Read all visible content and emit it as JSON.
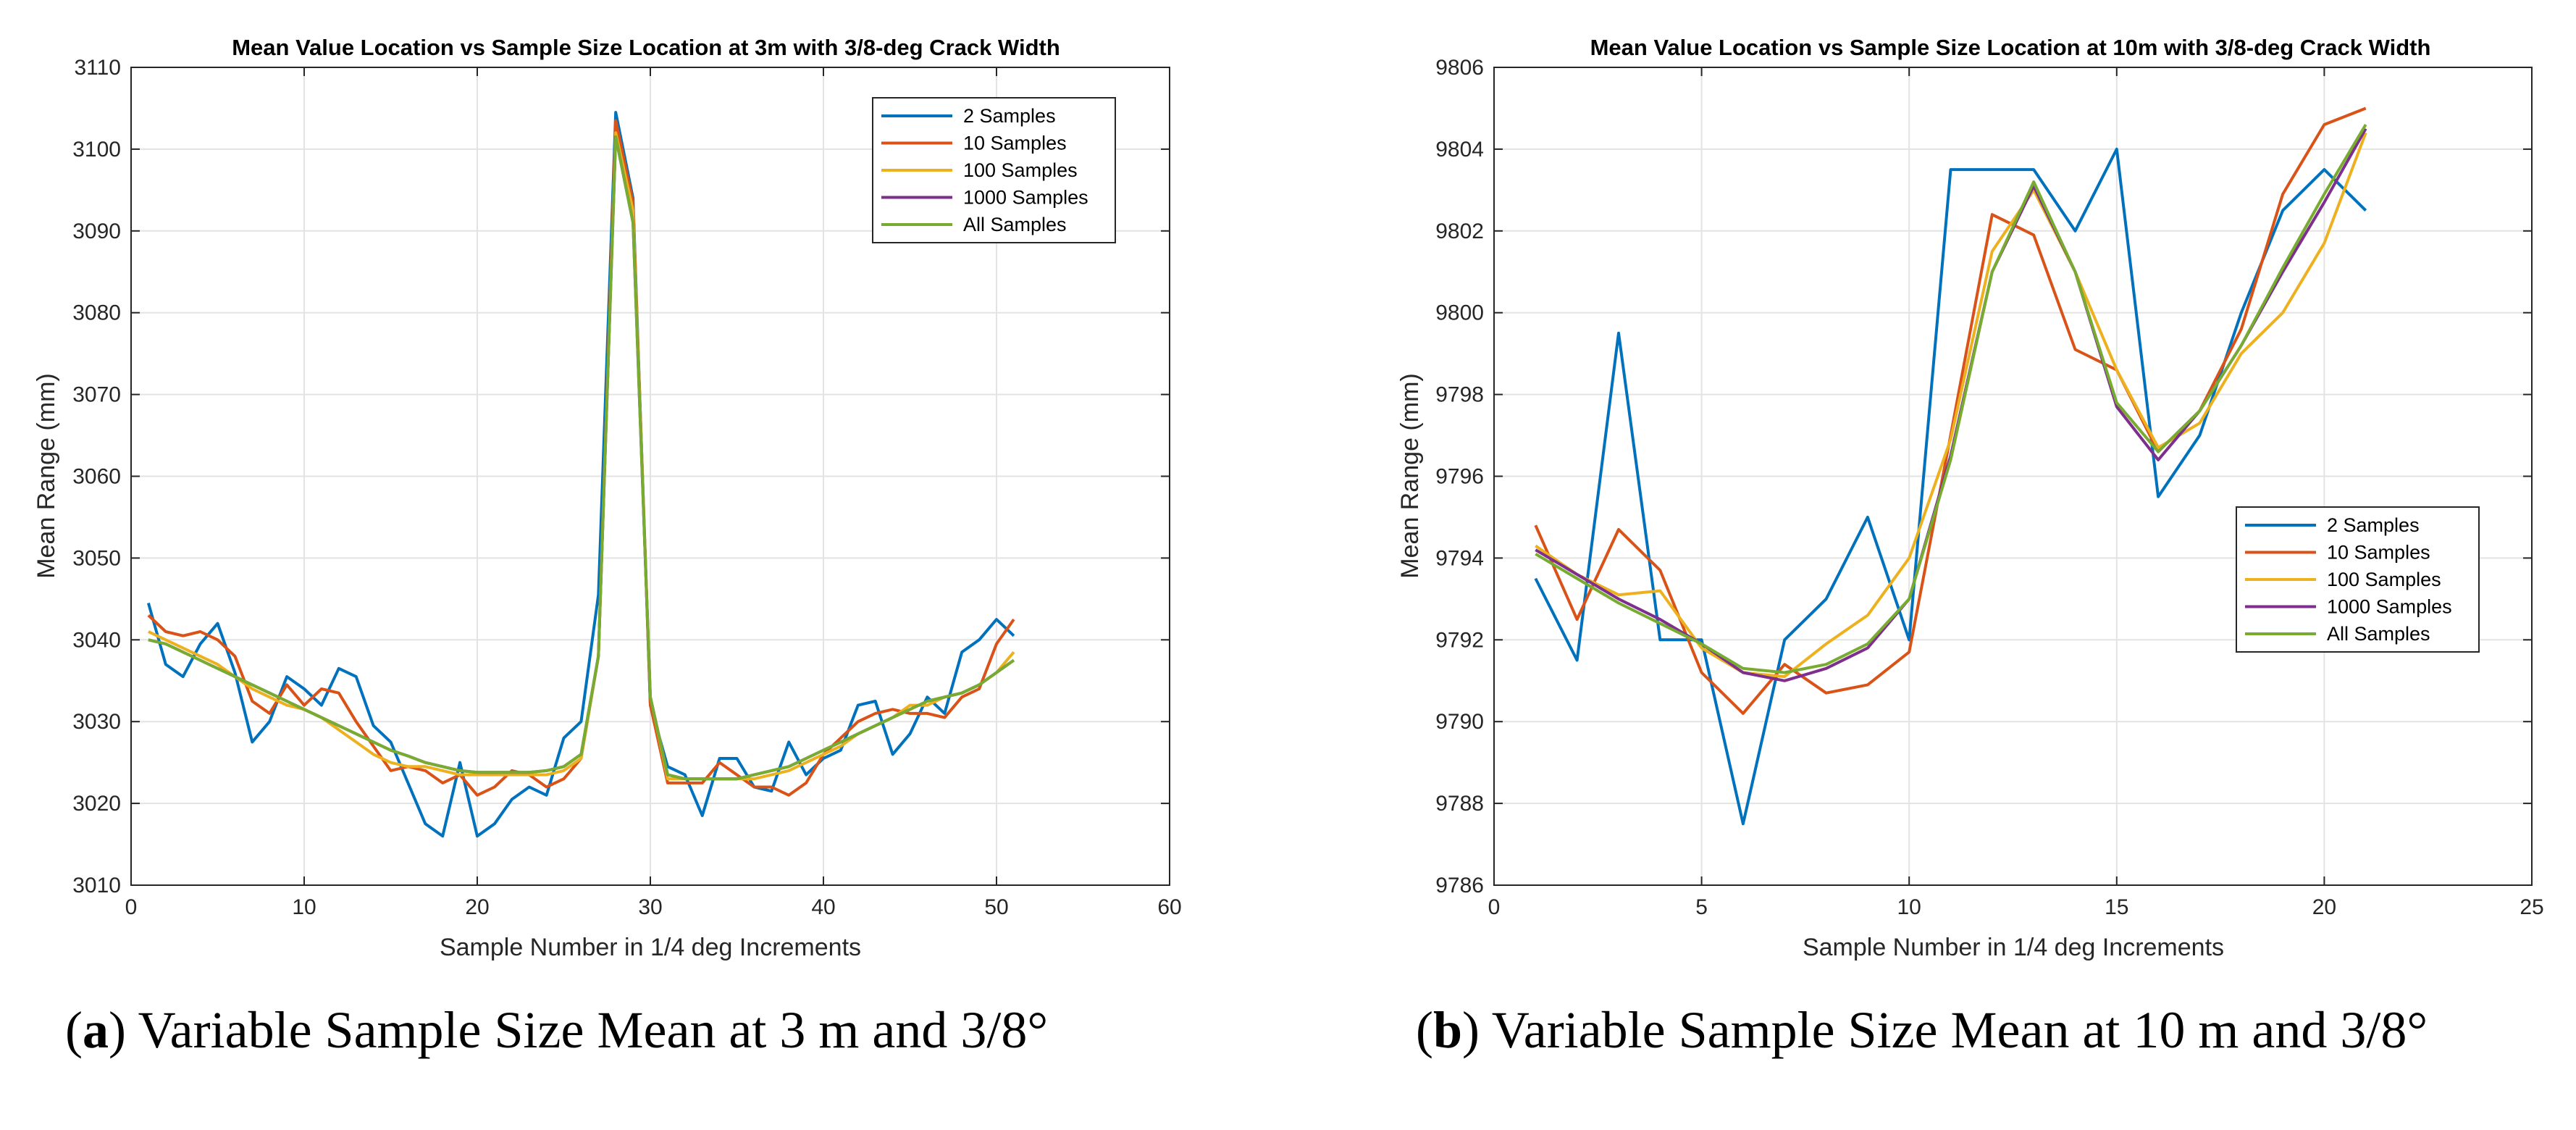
{
  "captions": [
    {
      "letter": "a",
      "text": " Variable Sample Size Mean at 3 m and 3/8°"
    },
    {
      "letter": "b",
      "text": " Variable Sample Size Mean at 10 m and 3/8°"
    }
  ],
  "colors": {
    "2 Samples": "#0072bd",
    "10 Samples": "#d95319",
    "100 Samples": "#edb120",
    "1000 Samples": "#7e2f8e",
    "All Samples": "#77ac30"
  },
  "chart_data": [
    {
      "type": "line",
      "title": "Mean Value Location vs Sample Size Location at 3m with 3/8-deg Crack Width",
      "xlabel": "Sample Number in 1/4 deg Increments",
      "ylabel": "Mean Range (mm)",
      "xlim": [
        0,
        60
      ],
      "ylim": [
        3010,
        3110
      ],
      "xticks": [
        0,
        10,
        20,
        30,
        40,
        50,
        60
      ],
      "yticks": [
        3010,
        3020,
        3030,
        3040,
        3050,
        3060,
        3070,
        3080,
        3090,
        3100,
        3110
      ],
      "grid": true,
      "legend_position": "top-right",
      "x": [
        1,
        2,
        3,
        4,
        5,
        6,
        7,
        8,
        9,
        10,
        11,
        12,
        13,
        14,
        15,
        16,
        17,
        18,
        19,
        20,
        21,
        22,
        23,
        24,
        25,
        26,
        27,
        28,
        29,
        30,
        31,
        32,
        33,
        34,
        35,
        36,
        37,
        38,
        39,
        40,
        41,
        42,
        43,
        44,
        45,
        46,
        47,
        48,
        49,
        50,
        51
      ],
      "series": [
        {
          "name": "2 Samples",
          "values": [
            3044.5,
            3037,
            3035.5,
            3039.5,
            3042,
            3036,
            3027.5,
            3030,
            3035.5,
            3034,
            3032,
            3036.5,
            3035.5,
            3029.5,
            3027.5,
            3022.5,
            3017.5,
            3016,
            3025,
            3016,
            3017.5,
            3020.5,
            3022,
            3021,
            3028,
            3030,
            3045.5,
            3104.5,
            3094,
            3032,
            3024.5,
            3023.5,
            3018.5,
            3025.5,
            3025.5,
            3022,
            3021.5,
            3027.5,
            3023.5,
            3025.5,
            3026.5,
            3032,
            3032.5,
            3026,
            3028.5,
            3033,
            3031,
            3038.5,
            3040,
            3042.5,
            3040.5
          ]
        },
        {
          "name": "10 Samples",
          "values": [
            3043,
            3041,
            3040.5,
            3041,
            3040,
            3038,
            3032.5,
            3031,
            3034.5,
            3032,
            3034,
            3033.5,
            3030,
            3027,
            3024,
            3024.5,
            3024,
            3022.5,
            3023.5,
            3021,
            3022,
            3024,
            3023.5,
            3022,
            3023,
            3025.5,
            3038,
            3103.5,
            3093.5,
            3032,
            3022.5,
            3022.5,
            3022.5,
            3025,
            3023.5,
            3022,
            3022,
            3021,
            3022.5,
            3026,
            3028,
            3030,
            3031,
            3031.5,
            3031,
            3031,
            3030.5,
            3033,
            3034,
            3039.5,
            3042.5
          ]
        },
        {
          "name": "100 Samples",
          "values": [
            3041,
            3040,
            3039,
            3038,
            3037,
            3035.5,
            3034,
            3033,
            3032,
            3031.5,
            3030.5,
            3029,
            3027.5,
            3026,
            3025,
            3024.5,
            3024.5,
            3024,
            3023.5,
            3023.5,
            3023.5,
            3023.5,
            3023.5,
            3023.5,
            3024,
            3025.5,
            3038,
            3102,
            3092.5,
            3033,
            3023,
            3023,
            3023,
            3023,
            3023,
            3023,
            3023.5,
            3024,
            3025,
            3026,
            3027,
            3028.5,
            3029.5,
            3030.5,
            3032,
            3032,
            3033,
            3033.5,
            3034.5,
            3036,
            3038.5
          ]
        },
        {
          "name": "1000 Samples",
          "values": [
            3040,
            3039.5,
            3038.5,
            3037.5,
            3036.5,
            3035.5,
            3034.5,
            3033.5,
            3032.5,
            3031.5,
            3030.5,
            3029.5,
            3028.5,
            3027.5,
            3026.5,
            3025.8,
            3025,
            3024.5,
            3024,
            3023.8,
            3023.8,
            3023.8,
            3023.8,
            3024,
            3024.5,
            3026,
            3038,
            3101.5,
            3091,
            3033,
            3023.5,
            3023,
            3023,
            3023,
            3023,
            3023.5,
            3024,
            3024.5,
            3025.5,
            3026.5,
            3027.5,
            3028.5,
            3029.5,
            3030.5,
            3031.5,
            3032.5,
            3033,
            3033.5,
            3034.5,
            3036,
            3037.5
          ]
        },
        {
          "name": "All Samples",
          "values": [
            3040,
            3039.5,
            3038.5,
            3037.5,
            3036.5,
            3035.5,
            3034.5,
            3033.5,
            3032.5,
            3031.5,
            3030.5,
            3029.5,
            3028.5,
            3027.5,
            3026.5,
            3025.8,
            3025,
            3024.5,
            3024,
            3023.8,
            3023.8,
            3023.8,
            3023.8,
            3024,
            3024.5,
            3026,
            3038,
            3101.5,
            3091,
            3033,
            3023.5,
            3023,
            3023,
            3023,
            3023,
            3023.5,
            3024,
            3024.5,
            3025.5,
            3026.5,
            3027.5,
            3028.5,
            3029.5,
            3030.5,
            3031.5,
            3032.5,
            3033,
            3033.5,
            3034.5,
            3036,
            3037.5
          ]
        }
      ]
    },
    {
      "type": "line",
      "title": "Mean Value Location vs Sample Size Location at 10m with 3/8-deg Crack Width",
      "xlabel": "Sample Number in 1/4 deg Increments",
      "ylabel": "Mean Range (mm)",
      "xlim": [
        0,
        25
      ],
      "ylim": [
        9786,
        9806
      ],
      "xticks": [
        0,
        5,
        10,
        15,
        20,
        25
      ],
      "yticks": [
        9786,
        9788,
        9790,
        9792,
        9794,
        9796,
        9798,
        9800,
        9802,
        9804,
        9806
      ],
      "grid": true,
      "legend_position": "middle-right",
      "x": [
        1,
        2,
        3,
        4,
        5,
        6,
        7,
        8,
        9,
        10,
        11,
        12,
        13,
        14,
        15,
        16,
        17,
        18,
        19,
        20,
        21
      ],
      "series": [
        {
          "name": "2 Samples",
          "values": [
            9793.5,
            9791.5,
            9799.5,
            9792,
            9792,
            9787.5,
            9792,
            9793,
            9795,
            9792,
            9803.5,
            9803.5,
            9803.5,
            9802,
            9804,
            9795.5,
            9797,
            9800,
            9802.5,
            9803.5,
            9802.5
          ]
        },
        {
          "name": "10 Samples",
          "values": [
            9794.8,
            9792.5,
            9794.7,
            9793.7,
            9791.2,
            9790.2,
            9791.4,
            9790.7,
            9790.9,
            9791.7,
            9797,
            9802.4,
            9801.9,
            9799.1,
            9798.6,
            9796.6,
            9797.6,
            9799.6,
            9802.9,
            9804.6,
            9805
          ]
        },
        {
          "name": "100 Samples",
          "values": [
            9794.3,
            9793.6,
            9793.1,
            9793.2,
            9791.8,
            9791.2,
            9791.1,
            9791.9,
            9792.6,
            9794,
            9796.9,
            9801.5,
            9803,
            9801,
            9798.6,
            9796.7,
            9797.3,
            9799,
            9800,
            9801.7,
            9804.4
          ]
        },
        {
          "name": "1000 Samples",
          "values": [
            9794.2,
            9793.6,
            9793,
            9792.5,
            9791.9,
            9791.2,
            9791,
            9791.3,
            9791.8,
            9793,
            9796.5,
            9801,
            9803.1,
            9801,
            9797.7,
            9796.4,
            9797.6,
            9799.2,
            9801,
            9802.7,
            9804.5
          ]
        },
        {
          "name": "All Samples",
          "values": [
            9794.1,
            9793.5,
            9792.9,
            9792.4,
            9791.9,
            9791.3,
            9791.2,
            9791.4,
            9791.9,
            9793,
            9796.4,
            9801,
            9803.2,
            9801,
            9797.8,
            9796.6,
            9797.6,
            9799.2,
            9801.1,
            9802.9,
            9804.6
          ]
        }
      ]
    }
  ]
}
